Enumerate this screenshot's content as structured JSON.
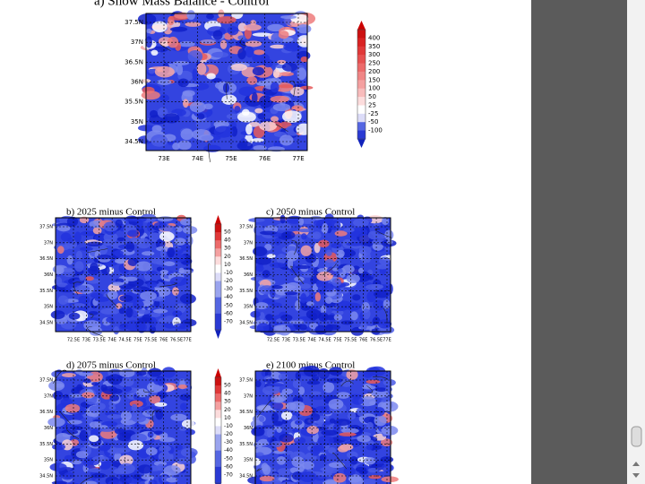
{
  "panel_a": {
    "title": "a) Snow Mass Balance - Control",
    "y_labels": [
      "37.5N",
      "37N",
      "36.5N",
      "36N",
      "35.5N",
      "35N",
      "34.5N"
    ],
    "x_labels": [
      "73E",
      "74E",
      "75E",
      "76E",
      "77E"
    ],
    "colorbar_labels": [
      "400",
      "350",
      "300",
      "250",
      "200",
      "150",
      "100",
      "50",
      "25",
      "-25",
      "-50",
      "-100"
    ]
  },
  "small_panels": {
    "y_labels": [
      "37.5N",
      "37N",
      "36.5N",
      "36N",
      "35.5N",
      "35N",
      "34.5N"
    ],
    "x_labels": [
      "72.5E",
      "73E",
      "73.5E",
      "74E",
      "74.5E",
      "75E",
      "75.5E",
      "76E",
      "76.5E",
      "77E"
    ],
    "colorbar_labels": [
      "50",
      "40",
      "30",
      "20",
      "10",
      "-10",
      "-20",
      "-30",
      "-40",
      "-50",
      "-60",
      "-70"
    ],
    "titles": [
      "b) 2025 minus Control",
      "c) 2050 minus Control",
      "d) 2075 minus Control",
      "e) 2100 minus Control"
    ]
  }
}
